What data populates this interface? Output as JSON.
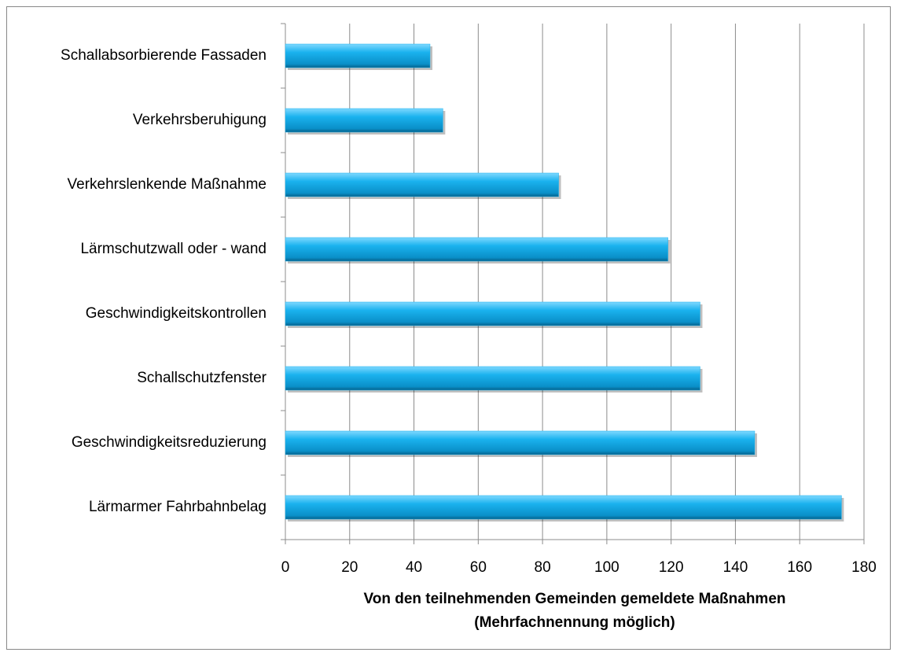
{
  "chart_data": {
    "type": "barh",
    "categories": [
      "Schallabsorbierende Fassaden",
      "Verkehrsberuhigung",
      "Verkehrslenkende Maßnahme",
      "Lärmschutzwall oder - wand",
      "Geschwindigkeitskontrollen",
      "Schallschutzfenster",
      "Geschwindigkeitsreduzierung",
      "Lärmarmer Fahrbahnbelag"
    ],
    "values": [
      45,
      49,
      85,
      119,
      129,
      129,
      146,
      173
    ],
    "color": "#1ab2ee",
    "xlim": [
      0,
      180
    ],
    "xticks": [
      0,
      20,
      40,
      60,
      80,
      100,
      120,
      140,
      160,
      180
    ],
    "grid": true,
    "xlabel": [
      "Von den teilnehmenden Gemeinden gemeldete Maßnahmen",
      "(Mehrfachnennung möglich)"
    ]
  }
}
